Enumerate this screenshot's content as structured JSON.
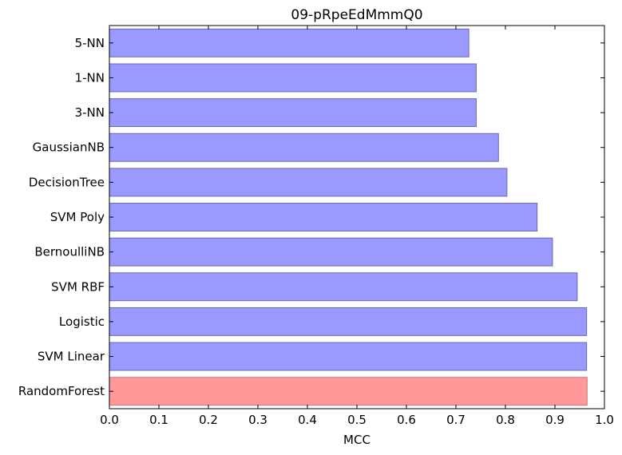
{
  "chart_data": {
    "type": "bar",
    "orientation": "horizontal",
    "title": "09-pRpeEdMmmQ0",
    "xlabel": "MCC",
    "ylabel": "",
    "xlim": [
      0.0,
      1.0
    ],
    "xticks": [
      "0.0",
      "0.1",
      "0.2",
      "0.3",
      "0.4",
      "0.5",
      "0.6",
      "0.7",
      "0.8",
      "0.9",
      "1.0"
    ],
    "grid": false,
    "categories": [
      "5-NN",
      "1-NN",
      "3-NN",
      "GaussianNB",
      "DecisionTree",
      "SVM Poly",
      "BernoulliNB",
      "SVM RBF",
      "Logistic",
      "SVM Linear",
      "RandomForest"
    ],
    "values": [
      0.726,
      0.741,
      0.741,
      0.786,
      0.803,
      0.864,
      0.895,
      0.945,
      0.964,
      0.964,
      0.965
    ],
    "highlight": "RandomForest",
    "colors": {
      "bar": "#9999ff",
      "bar_edge": "#6a6ab0",
      "highlight": "#ff9999",
      "highlight_edge": "#cc7777"
    }
  }
}
